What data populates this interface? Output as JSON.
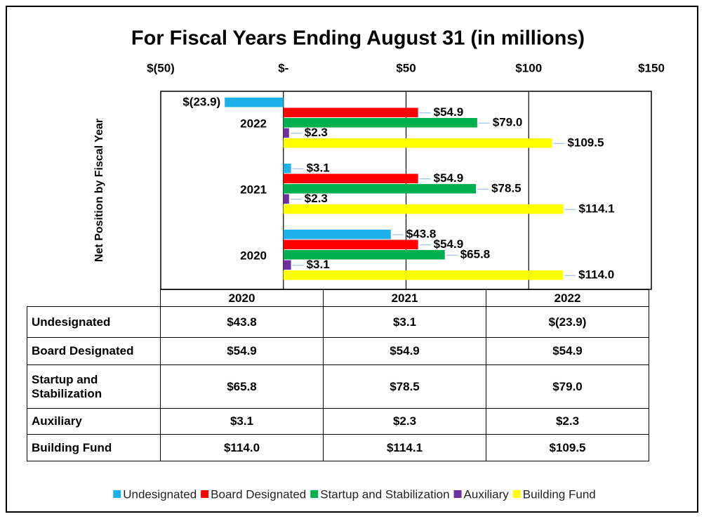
{
  "chart_data": {
    "type": "bar",
    "title": "For Fiscal Years Ending August 31 (in millions)",
    "y_label": "Net Position by Fiscal Year",
    "categories": [
      "2020",
      "2021",
      "2022"
    ],
    "series": [
      {
        "name": "Undesignated",
        "color": "#1eb0e8",
        "values": [
          43.8,
          3.1,
          -23.9
        ],
        "value_labels": [
          "$43.8",
          "$3.1",
          "$(23.9)"
        ]
      },
      {
        "name": "Board Designated",
        "color": "#ff0000",
        "values": [
          54.9,
          54.9,
          54.9
        ],
        "value_labels": [
          "$54.9",
          "$54.9",
          "$54.9"
        ]
      },
      {
        "name": "Startup and Stabilization",
        "color": "#00b050",
        "values": [
          65.8,
          78.5,
          79.0
        ],
        "value_labels": [
          "$65.8",
          "$78.5",
          "$79.0"
        ]
      },
      {
        "name": "Auxiliary",
        "color": "#7030a0",
        "values": [
          3.1,
          2.3,
          2.3
        ],
        "value_labels": [
          "$3.1",
          "$2.3",
          "$2.3"
        ]
      },
      {
        "name": "Building Fund",
        "color": "#ffff00",
        "values": [
          114.0,
          114.1,
          109.5
        ],
        "value_labels": [
          "$114.0",
          "$114.1",
          "$109.5"
        ]
      }
    ],
    "xlim": [
      -50,
      150
    ],
    "xticks": [
      {
        "value": -50,
        "label": "$(50)"
      },
      {
        "value": 0,
        "label": "$-"
      },
      {
        "value": 50,
        "label": "$50"
      },
      {
        "value": 100,
        "label": "$100"
      },
      {
        "value": 150,
        "label": "$150"
      }
    ],
    "grid": true,
    "legend": "bottom"
  }
}
